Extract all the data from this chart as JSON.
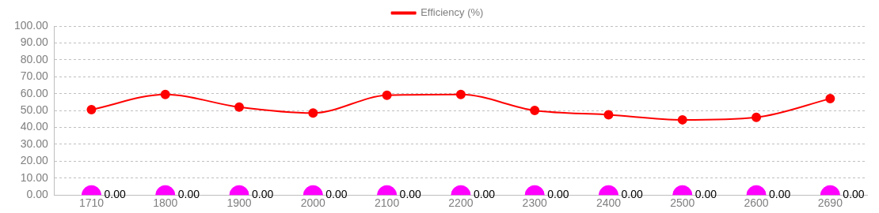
{
  "chart_data": {
    "type": "line",
    "categories": [
      "1710",
      "1800",
      "1900",
      "2000",
      "2100",
      "2200",
      "2300",
      "2400",
      "2500",
      "2600",
      "2690"
    ],
    "series": [
      {
        "name": "Efficiency (%)",
        "color": "#ff0000",
        "values": [
          50.5,
          59.5,
          52,
          48.5,
          59,
          59.5,
          50,
          47.5,
          44.5,
          46,
          57
        ]
      },
      {
        "type": "scatter",
        "color": "#ff00ff",
        "values": [
          0,
          0,
          0,
          0,
          0,
          0,
          0,
          0,
          0,
          0,
          0
        ],
        "value_labels": [
          "0.00",
          "0.00",
          "0.00",
          "0.00",
          "0.00",
          "0.00",
          "0.00",
          "0.00",
          "0.00",
          "0.00",
          "0.00"
        ]
      }
    ],
    "ylim": [
      0,
      100
    ],
    "yticks": [
      {
        "value": 0,
        "label": "0.00"
      },
      {
        "value": 10,
        "label": "10.00"
      },
      {
        "value": 20,
        "label": "20.00"
      },
      {
        "value": 30,
        "label": "30.00"
      },
      {
        "value": 40,
        "label": "40.00"
      },
      {
        "value": 50,
        "label": "50.00"
      },
      {
        "value": 60,
        "label": "60.00"
      },
      {
        "value": 70,
        "label": "70.00"
      },
      {
        "value": 80,
        "label": "80.00"
      },
      {
        "value": 90,
        "label": "90.00"
      },
      {
        "value": 100,
        "label": "100.00"
      }
    ],
    "grid": "y",
    "legend": "top",
    "marker": "circle",
    "line_style": "solid"
  }
}
